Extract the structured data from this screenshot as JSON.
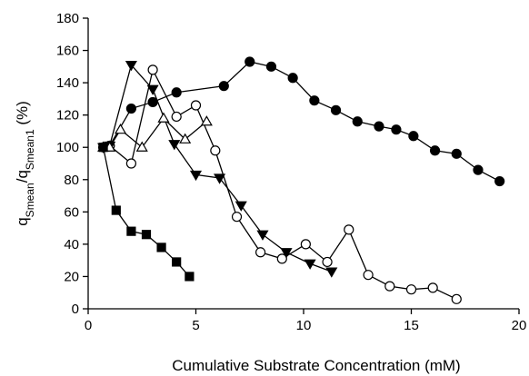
{
  "chart_data": {
    "type": "scatter",
    "title": "",
    "xlabel": "Cumulative Substrate Concentration (mM)",
    "ylabel": {
      "q1": "q",
      "sub1": "Smean",
      "sep": "/",
      "q2": "q",
      "sub2": "Smean1",
      "unit": " (%)"
    },
    "xlim": [
      0,
      20
    ],
    "ylim": [
      0,
      180
    ],
    "xticks": [
      "0",
      "5",
      "10",
      "15",
      "20"
    ],
    "yticks": [
      "0",
      "20",
      "40",
      "60",
      "80",
      "100",
      "120",
      "140",
      "160",
      "180"
    ],
    "grid": false,
    "series": [
      {
        "marker": "circle-filled",
        "x": [
          0.7,
          1.0,
          2.0,
          3.0,
          4.1,
          6.3,
          7.5,
          8.5,
          9.5,
          10.5,
          11.5,
          12.5,
          13.5,
          14.3,
          15.1,
          16.1,
          17.1,
          18.1,
          19.1
        ],
        "y": [
          100,
          101,
          124,
          128,
          134,
          138,
          153,
          150,
          143,
          129,
          123,
          116,
          113,
          111,
          107,
          98,
          96,
          86,
          79
        ]
      },
      {
        "marker": "circle-open",
        "x": [
          1.0,
          2.0,
          3.0,
          4.1,
          5.0,
          5.9,
          6.9,
          8.0,
          9.0,
          10.1,
          11.1,
          12.1,
          13.0,
          14.0,
          15.0,
          16.0,
          17.1
        ],
        "y": [
          101,
          90,
          148,
          119,
          126,
          98,
          57,
          35,
          31,
          40,
          29,
          49,
          21,
          14,
          12,
          13,
          6
        ]
      },
      {
        "marker": "triangle-down-filled",
        "x": [
          0.7,
          1.0,
          2.0,
          3.0,
          4.0,
          5.0,
          6.1,
          7.1,
          8.1,
          9.2,
          10.3,
          11.3
        ],
        "y": [
          100,
          101,
          151,
          136,
          102,
          83,
          81,
          64,
          46,
          35,
          28,
          23
        ]
      },
      {
        "marker": "triangle-up-open",
        "x": [
          0.7,
          1.0,
          1.5,
          2.5,
          3.5,
          4.5,
          5.5
        ],
        "y": [
          100,
          100,
          111,
          100,
          118,
          105,
          116
        ]
      },
      {
        "marker": "square-filled",
        "x": [
          0.7,
          1.3,
          2.0,
          2.7,
          3.4,
          4.1,
          4.7
        ],
        "y": [
          100,
          61,
          48,
          46,
          38,
          29,
          20
        ]
      }
    ]
  }
}
